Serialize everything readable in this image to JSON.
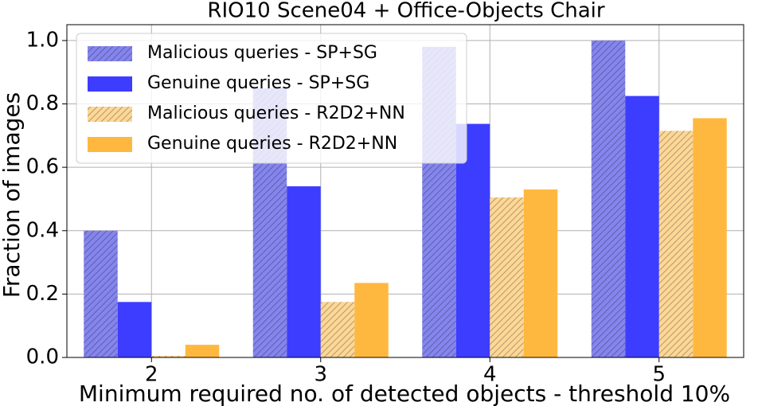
{
  "chart_data": {
    "type": "bar",
    "title": "RIO10 Scene04 + Office-Objects Chair",
    "x_label": "Minimum required no. of detected objects - threshold 10%",
    "y_label": "Fraction of images",
    "categories": [
      "2",
      "3",
      "4",
      "5"
    ],
    "series": [
      {
        "name": "Malicious queries - SP+SG",
        "color": "#8585ee",
        "hatch": true,
        "values": [
          0.4,
          0.85,
          0.98,
          1.0
        ]
      },
      {
        "name": "Genuine queries - SP+SG",
        "color": "#3d3dff",
        "hatch": false,
        "values": [
          0.175,
          0.54,
          0.737,
          0.825
        ]
      },
      {
        "name": "Malicious queries - R2D2+NN",
        "color": "#fdd796",
        "hatch": true,
        "values": [
          0.005,
          0.175,
          0.505,
          0.715
        ]
      },
      {
        "name": "Genuine queries - R2D2+NN",
        "color": "#ffb83f",
        "hatch": false,
        "values": [
          0.04,
          0.235,
          0.53,
          0.755
        ]
      }
    ],
    "ylim": [
      0,
      1.05
    ],
    "yticks": [
      {
        "value": 0,
        "label": "0.0"
      },
      0.2,
      0.4,
      0.6,
      0.8,
      {
        "value": 1,
        "label": "1.0"
      }
    ],
    "grid": true,
    "legend": "upper left"
  }
}
